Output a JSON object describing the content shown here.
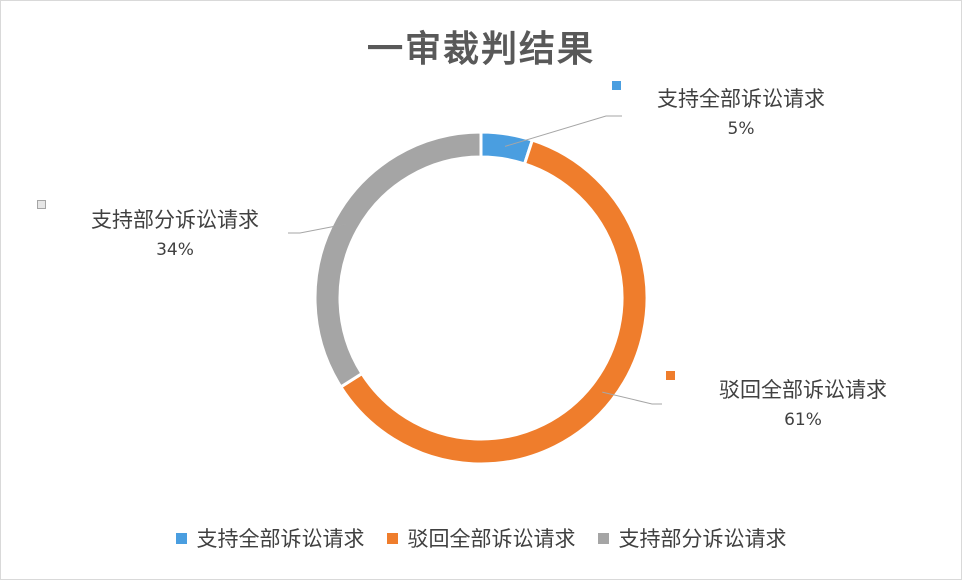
{
  "chart_data": {
    "type": "pie",
    "donut": true,
    "title": "一审裁判结果",
    "categories": [
      "支持全部诉讼请求",
      "驳回全部诉讼请求",
      "支持部分诉讼请求"
    ],
    "values": [
      5,
      61,
      34
    ],
    "labels": [
      "5%",
      "61%",
      "34%"
    ],
    "colors": [
      "#4a9ee0",
      "#ef7d2c",
      "#a5a5a5"
    ],
    "legend_position": "bottom"
  }
}
